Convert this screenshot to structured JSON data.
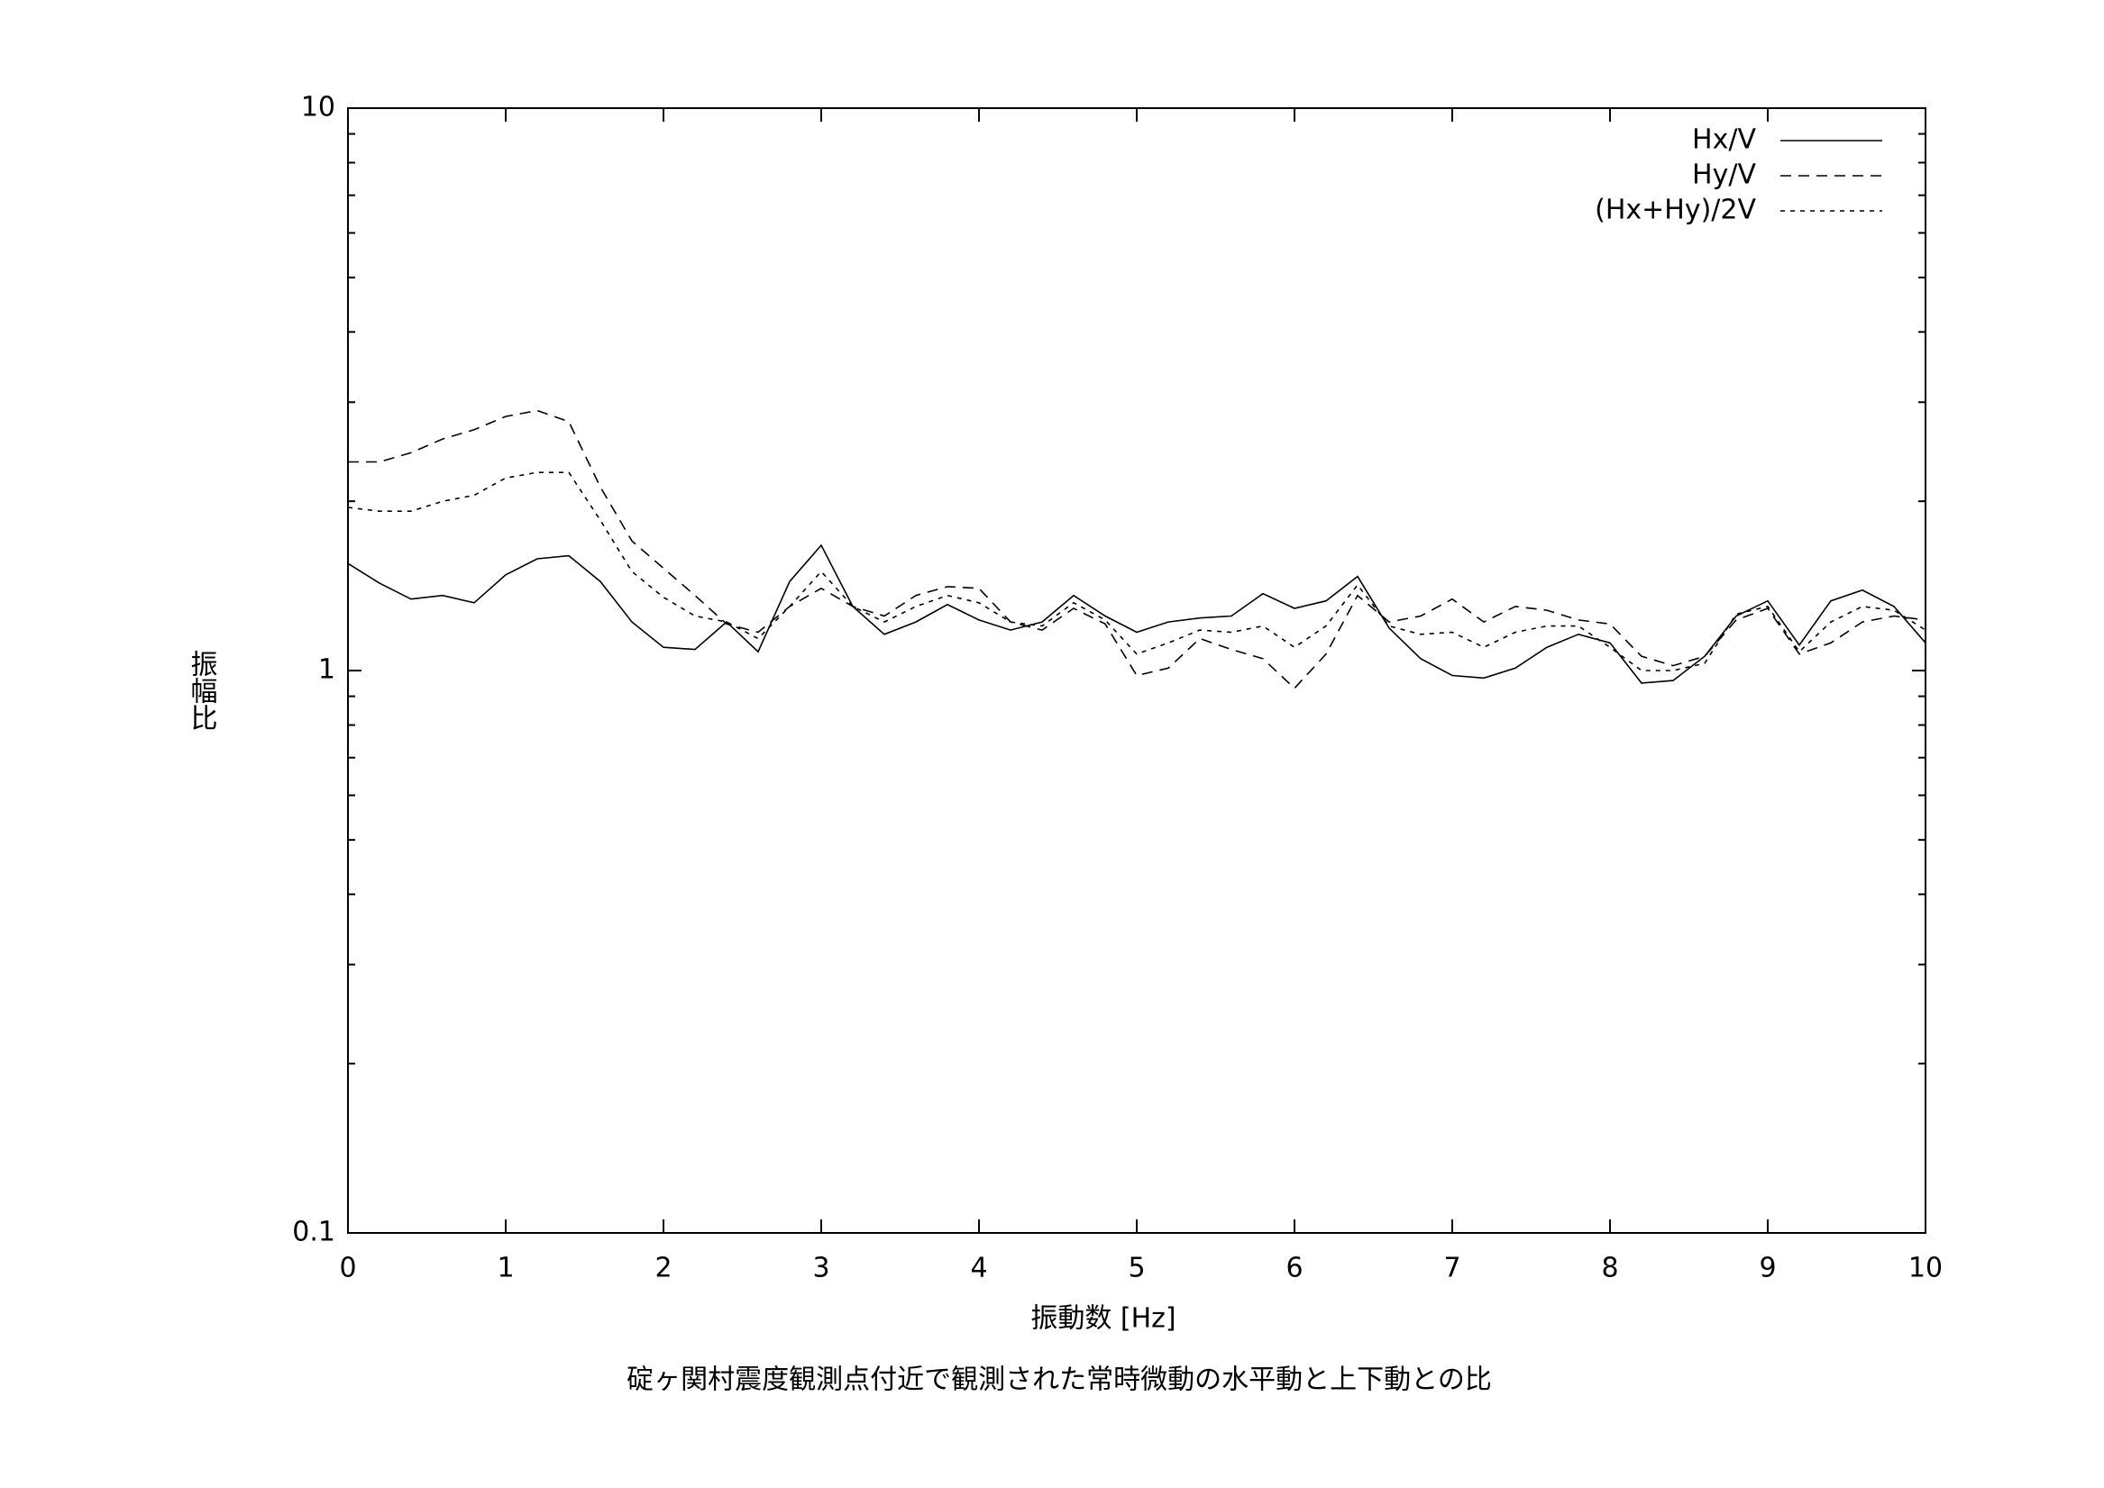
{
  "chart_data": {
    "type": "line",
    "title": "碇ヶ関村震度観測点付近で観測された常時微動の水平動と上下動との比",
    "x_label": "振動数 [Hz]",
    "y_label": "振幅比",
    "log_y": true,
    "legend": "top-right",
    "xlim": [
      0,
      10
    ],
    "xticks": [
      0,
      1,
      2,
      3,
      4,
      5,
      6,
      7,
      8,
      9,
      10
    ],
    "ylim": [
      0.1,
      10
    ],
    "yticks": [
      0.1,
      1,
      10
    ],
    "yminorticks": [
      0.2,
      0.3,
      0.4,
      0.5,
      0.6,
      0.7,
      0.8,
      0.9,
      2,
      3,
      4,
      5,
      6,
      7,
      8,
      9
    ],
    "x": [
      0,
      0.2,
      0.4,
      0.6,
      0.8,
      1,
      1.2,
      1.4,
      1.6,
      1.8,
      2,
      2.2,
      2.4,
      2.6,
      2.8,
      3,
      3.2,
      3.4,
      3.6,
      3.8,
      4,
      4.2,
      4.4,
      4.6,
      4.8,
      5,
      5.2,
      5.4,
      5.6,
      5.8,
      6,
      6.2,
      6.4,
      6.6,
      6.8,
      7,
      7.2,
      7.4,
      7.6,
      7.8,
      8,
      8.2,
      8.4,
      8.6,
      8.8,
      9,
      9.2,
      9.4,
      9.6,
      9.8,
      10
    ],
    "series": [
      {
        "name": "Hx/V",
        "color": "#000000",
        "dash": "none",
        "values": [
          1.55,
          1.43,
          1.34,
          1.36,
          1.32,
          1.48,
          1.58,
          1.6,
          1.44,
          1.22,
          1.1,
          1.09,
          1.22,
          1.08,
          1.44,
          1.67,
          1.3,
          1.16,
          1.22,
          1.31,
          1.23,
          1.18,
          1.22,
          1.36,
          1.25,
          1.17,
          1.22,
          1.24,
          1.25,
          1.37,
          1.29,
          1.33,
          1.47,
          1.19,
          1.05,
          0.98,
          0.97,
          1.01,
          1.1,
          1.16,
          1.12,
          0.95,
          0.96,
          1.06,
          1.25,
          1.33,
          1.11,
          1.33,
          1.39,
          1.3,
          1.12
        ]
      },
      {
        "name": "Hy/V",
        "color": "#000000",
        "dash": "12,8",
        "values": [
          2.35,
          2.35,
          2.44,
          2.58,
          2.68,
          2.83,
          2.9,
          2.77,
          2.12,
          1.7,
          1.52,
          1.36,
          1.21,
          1.17,
          1.3,
          1.4,
          1.3,
          1.25,
          1.36,
          1.41,
          1.4,
          1.22,
          1.18,
          1.29,
          1.21,
          0.98,
          1.01,
          1.14,
          1.09,
          1.05,
          0.93,
          1.07,
          1.36,
          1.22,
          1.25,
          1.34,
          1.22,
          1.3,
          1.28,
          1.23,
          1.21,
          1.06,
          1.02,
          1.06,
          1.23,
          1.29,
          1.07,
          1.12,
          1.22,
          1.25,
          1.23
        ]
      },
      {
        "name": "(Hx+Hy)/2V",
        "color": "#000000",
        "dash": "5,6",
        "values": [
          1.95,
          1.92,
          1.92,
          2.0,
          2.05,
          2.2,
          2.25,
          2.25,
          1.85,
          1.5,
          1.35,
          1.25,
          1.22,
          1.14,
          1.3,
          1.5,
          1.3,
          1.22,
          1.3,
          1.36,
          1.32,
          1.22,
          1.2,
          1.32,
          1.23,
          1.07,
          1.12,
          1.18,
          1.17,
          1.2,
          1.1,
          1.2,
          1.42,
          1.2,
          1.16,
          1.17,
          1.1,
          1.17,
          1.2,
          1.2,
          1.1,
          1.0,
          1.0,
          1.03,
          1.26,
          1.3,
          1.08,
          1.22,
          1.3,
          1.28,
          1.18
        ]
      }
    ]
  }
}
